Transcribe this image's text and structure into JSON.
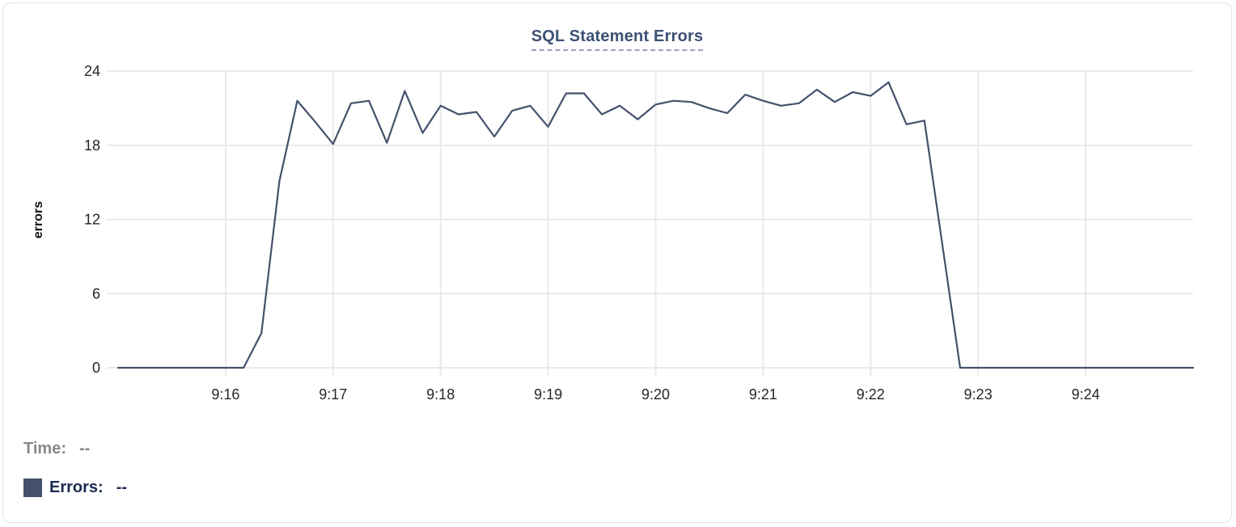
{
  "panel": {
    "title": "SQL Statement Errors"
  },
  "legend": {
    "time_label": "Time:",
    "time_value": "--",
    "errors_label": "Errors:",
    "errors_value": "--",
    "errors_swatch_color": "#44516c"
  },
  "colors": {
    "line": "#44516c",
    "grid": "#e9e9e9",
    "tick_label": "#262626",
    "axis_title": "#111111",
    "title": "#3d5174",
    "title_underline": "#93a1ba",
    "card_border": "#e2e2e6"
  },
  "chart_data": {
    "type": "line",
    "title": "SQL Statement Errors",
    "xlabel": "",
    "ylabel": "errors",
    "ylim": [
      0,
      24
    ],
    "y_ticks": [
      0,
      6,
      12,
      18,
      24
    ],
    "x_tick_labels": [
      "9:16",
      "9:17",
      "9:18",
      "9:19",
      "9:20",
      "9:21",
      "9:22",
      "9:23",
      "9:24"
    ],
    "x_start": "9:15:00",
    "x_end": "9:25:00",
    "sample_interval_seconds": 10,
    "grid": true,
    "legend_position": "bottom-left",
    "series": [
      {
        "name": "Errors",
        "color": "#44516c",
        "values": [
          0,
          0,
          0,
          0,
          0,
          0,
          0,
          0,
          2.8,
          15.1,
          21.6,
          19.9,
          18.1,
          21.4,
          21.6,
          18.2,
          22.4,
          19.0,
          21.2,
          20.5,
          20.7,
          18.7,
          20.8,
          21.2,
          19.5,
          22.2,
          22.2,
          20.5,
          21.2,
          20.1,
          21.3,
          21.6,
          21.5,
          21.0,
          20.6,
          22.1,
          21.6,
          21.2,
          21.4,
          22.5,
          21.5,
          22.3,
          22.0,
          23.1,
          19.7,
          20.0,
          10.0,
          0,
          0,
          0,
          0,
          0,
          0,
          0,
          0,
          0,
          0,
          0,
          0,
          0,
          0
        ]
      }
    ]
  }
}
